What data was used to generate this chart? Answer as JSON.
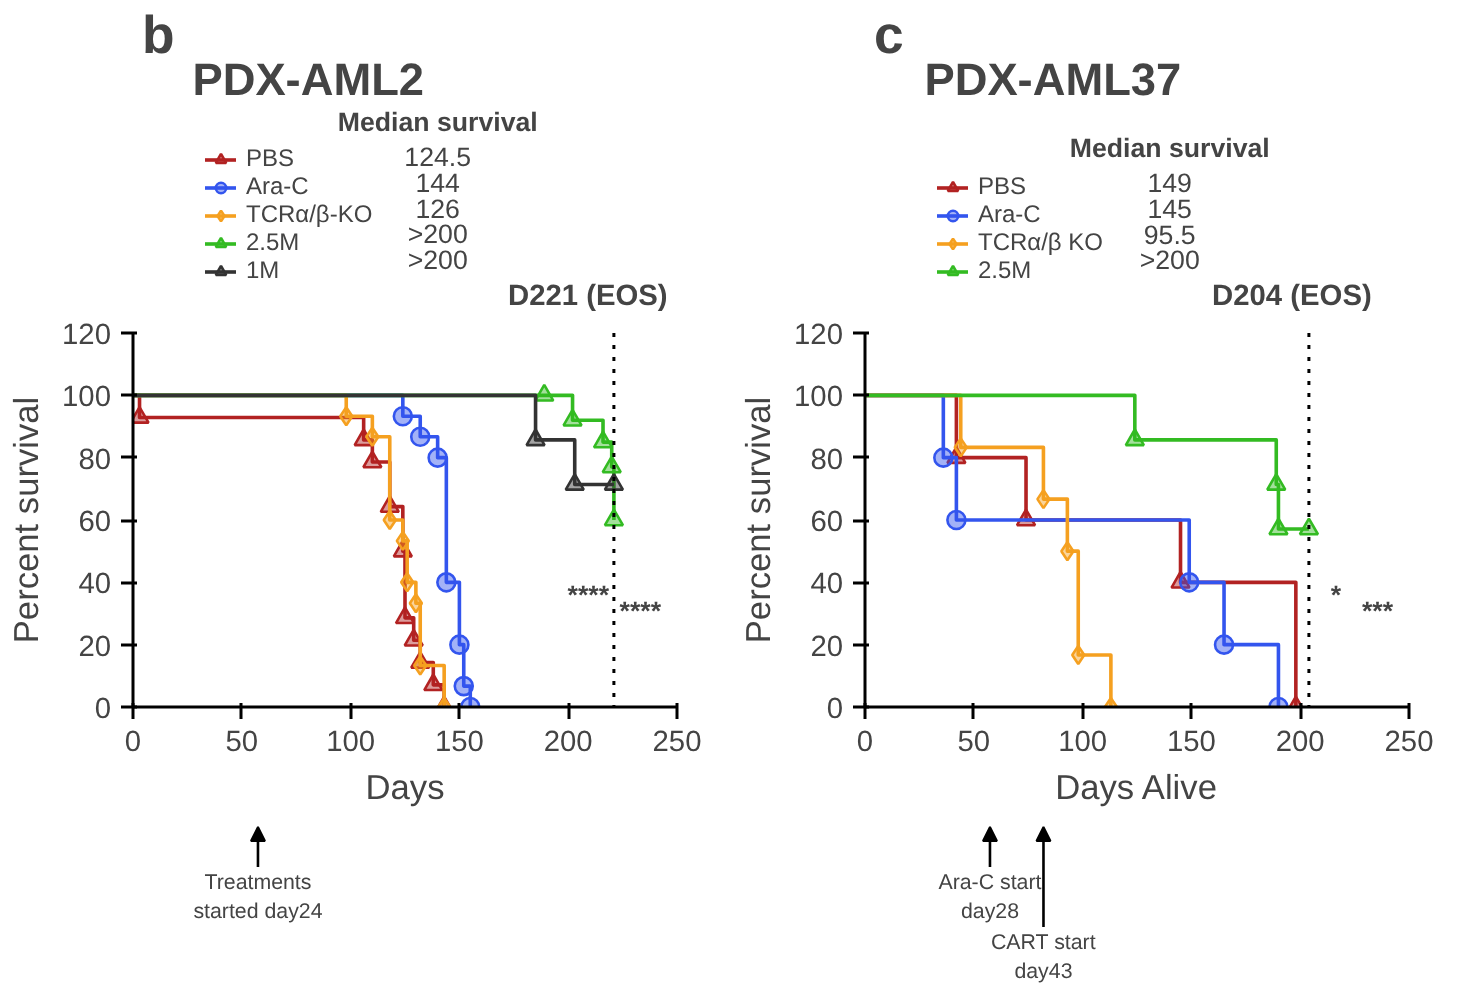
{
  "chart_data": [
    {
      "type": "step",
      "title": "PDX-AML2",
      "xlabel": "Days",
      "ylabel": "Percent survival",
      "xlim": [
        0,
        250
      ],
      "xticks": [
        0,
        50,
        100,
        150,
        200,
        250
      ],
      "ylim": [
        0,
        120
      ],
      "yticks": [
        0,
        20,
        40,
        60,
        80,
        100,
        120
      ],
      "grid": false,
      "legend": "top left",
      "line_style": "solid",
      "series": [
        {
          "name": "PBS",
          "color": "#b22222",
          "marker": "triangle",
          "x": [
            0,
            3,
            106,
            110,
            118,
            124,
            125,
            129,
            132,
            138,
            143
          ],
          "values": [
            100,
            92.9,
            85.7,
            78.6,
            64.3,
            50,
            28.6,
            21.4,
            14.3,
            7.1,
            0
          ]
        },
        {
          "name": "Ara-C",
          "color": "#3355ee",
          "marker": "circle",
          "x": [
            0,
            124,
            132,
            140,
            144,
            150,
            152,
            155
          ],
          "values": [
            100,
            93.3,
            86.7,
            80,
            40,
            20,
            6.7,
            0
          ]
        },
        {
          "name": "TCRα/β-KO",
          "color": "#f5a020",
          "marker": "diamond",
          "x": [
            0,
            98,
            110,
            118,
            124,
            126,
            130,
            132,
            143
          ],
          "values": [
            100,
            93.3,
            86.7,
            60,
            53.3,
            40,
            33.3,
            13.3,
            0
          ]
        },
        {
          "name": "2.5M",
          "color": "#33bb22",
          "marker": "triangle",
          "x": [
            0,
            189,
            202,
            216,
            220,
            221
          ],
          "values": [
            100,
            100,
            92,
            85,
            77,
            60
          ]
        },
        {
          "name": "1M",
          "color": "#333333",
          "marker": "triangle",
          "x": [
            0,
            185,
            203,
            221
          ],
          "values": [
            100,
            85.7,
            71.4,
            71.4
          ]
        }
      ],
      "ref_lines": [
        {
          "axis": "x",
          "value": 221,
          "label": "D221 (EOS)",
          "color": "#000000",
          "line_style": "dotted"
        }
      ],
      "annotations": [
        "b",
        "Median survival",
        "124.5",
        "144",
        "126",
        ">200",
        ">200",
        "****",
        "****",
        "Treatments started day24"
      ]
    },
    {
      "type": "step",
      "title": "PDX-AML37",
      "xlabel": "Days Alive",
      "ylabel": "Percent survival",
      "xlim": [
        0,
        250
      ],
      "xticks": [
        0,
        50,
        100,
        150,
        200,
        250
      ],
      "ylim": [
        0,
        120
      ],
      "yticks": [
        0,
        20,
        40,
        60,
        80,
        100,
        120
      ],
      "grid": false,
      "legend": "top left",
      "line_style": "solid",
      "series": [
        {
          "name": "PBS",
          "color": "#b22222",
          "marker": "triangle",
          "x": [
            0,
            42,
            74,
            145,
            198
          ],
          "values": [
            100,
            80,
            60,
            40,
            0
          ]
        },
        {
          "name": "Ara-C",
          "color": "#3355ee",
          "marker": "circle",
          "x": [
            0,
            36,
            42,
            149,
            165,
            190
          ],
          "values": [
            100,
            80,
            60,
            40,
            20,
            0
          ]
        },
        {
          "name": "TCRα/β KO",
          "color": "#f5a020",
          "marker": "diamond",
          "x": [
            0,
            44,
            82,
            93,
            98,
            113
          ],
          "values": [
            100,
            83.3,
            66.7,
            50,
            16.7,
            0
          ]
        },
        {
          "name": "2.5M",
          "color": "#33bb22",
          "marker": "triangle",
          "x": [
            0,
            124,
            189,
            190,
            204
          ],
          "values": [
            100,
            85.7,
            71.4,
            57.1,
            57.1
          ]
        }
      ],
      "ref_lines": [
        {
          "axis": "x",
          "value": 204,
          "label": "D204 (EOS)",
          "color": "#000000",
          "line_style": "dotted"
        }
      ],
      "annotations": [
        "c",
        "Median survival",
        "149",
        "145",
        "95.5",
        ">200",
        "*",
        "***",
        "Ara-C start day28",
        "CART start day43"
      ]
    }
  ]
}
